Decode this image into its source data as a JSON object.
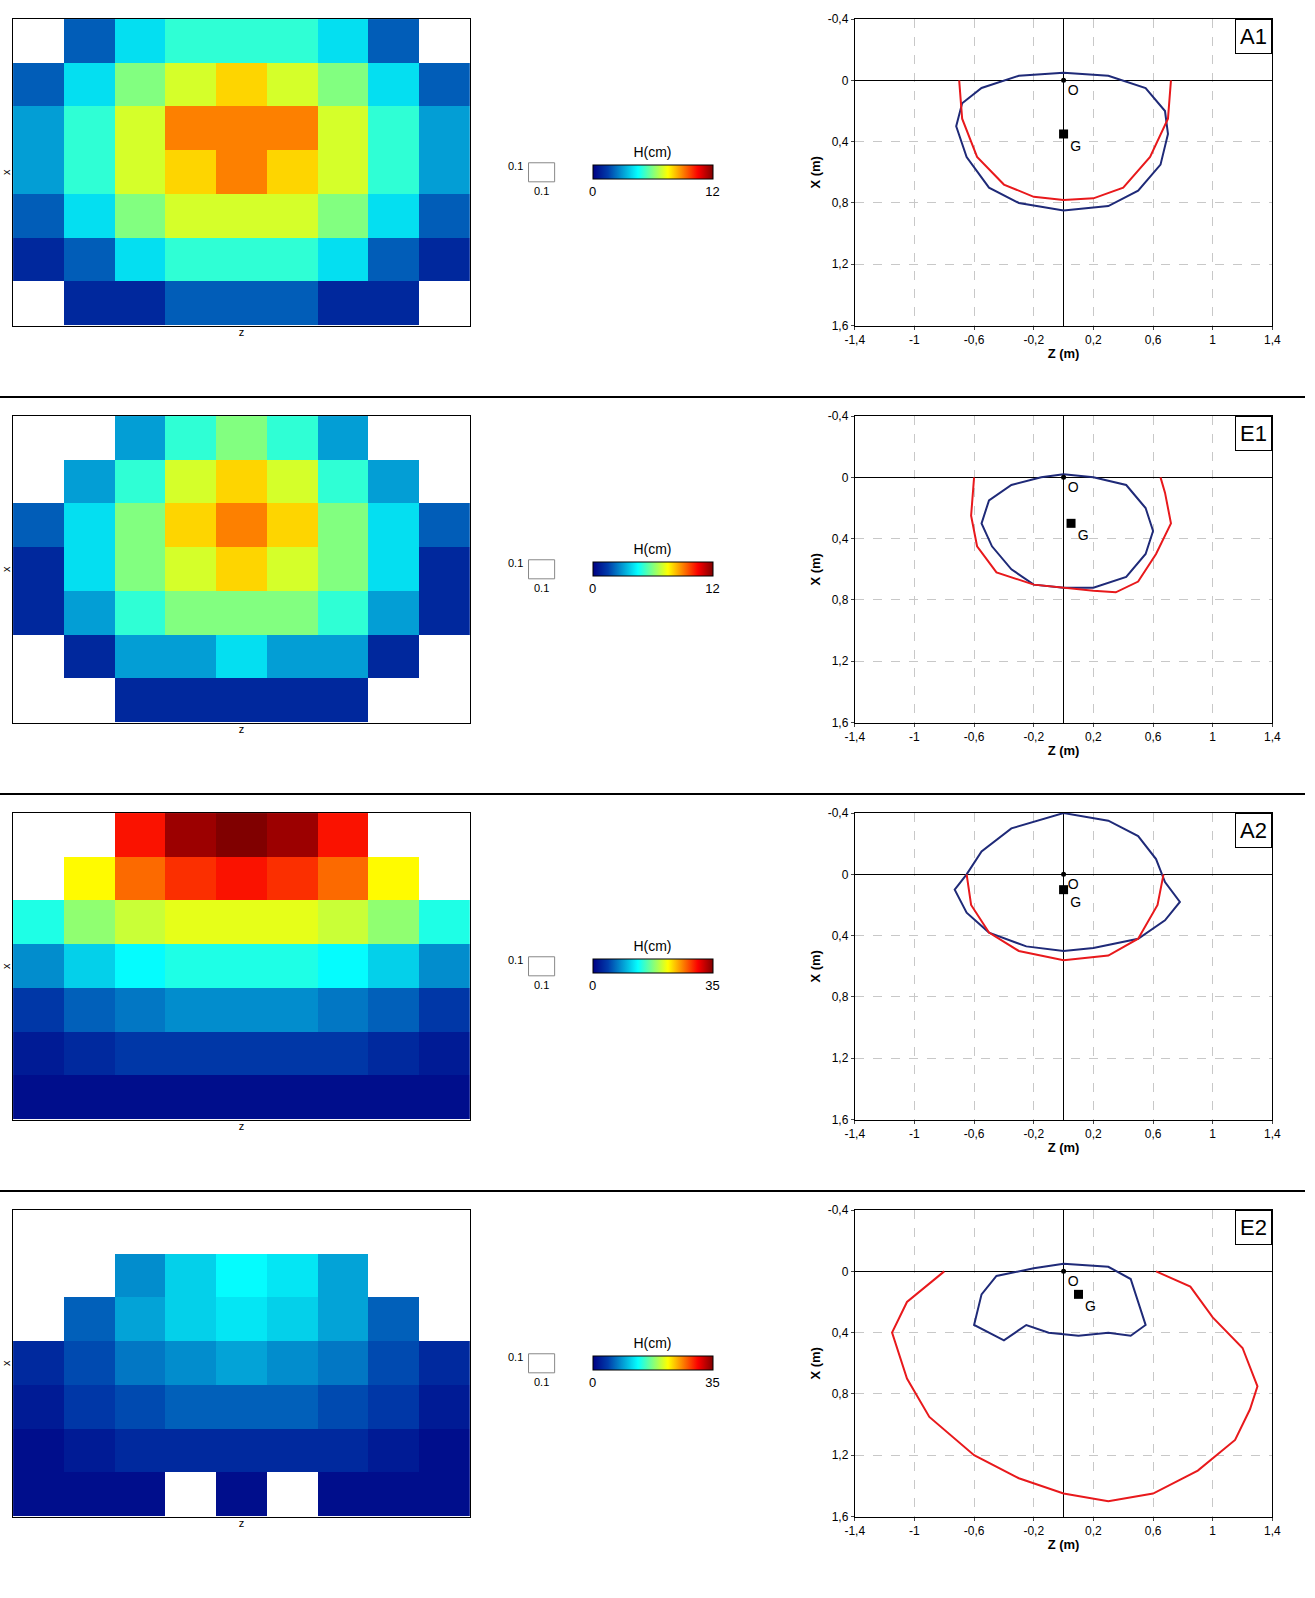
{
  "chart_data": [
    {
      "type": "heatmap",
      "xlabel": "z",
      "ylabel": "x",
      "tick_labels": false,
      "scale": 0.1,
      "colorbar_title": "H(cm)",
      "colorbar_range": [
        0,
        12
      ],
      "colorbar_ticks": [
        0,
        12
      ],
      "cells": [
        [
          null,
          2,
          4,
          5,
          5,
          5,
          4,
          2,
          null
        ],
        [
          2,
          4,
          6,
          7,
          8,
          7,
          6,
          4,
          2
        ],
        [
          3,
          5,
          7,
          9,
          9,
          9,
          7,
          5,
          3
        ],
        [
          3,
          5,
          7,
          8,
          9,
          8,
          7,
          5,
          3
        ],
        [
          2,
          4,
          6,
          7,
          7,
          7,
          6,
          4,
          2
        ],
        [
          1,
          2,
          4,
          5,
          5,
          5,
          4,
          2,
          1
        ],
        [
          null,
          1,
          1,
          2,
          2,
          2,
          1,
          1,
          null
        ]
      ]
    },
    {
      "type": "line",
      "title": "A1",
      "xlabel": "Z (m)",
      "ylabel": "X (m)",
      "grid": true,
      "xlim": [
        -1.4,
        1.4
      ],
      "xticks": [
        {
          "value": -1.4,
          "label": "-1,4"
        },
        -1,
        {
          "value": -0.6,
          "label": "-0,6"
        },
        {
          "value": -0.2,
          "label": "-0,2"
        },
        {
          "value": 0.2,
          "label": "0,2"
        },
        {
          "value": 0.6,
          "label": "0,6"
        },
        1,
        {
          "value": 1.4,
          "label": "1,4"
        }
      ],
      "ylim": [
        1.6,
        -0.4
      ],
      "yticks": [
        {
          "value": -0.4,
          "label": "-0,4"
        },
        0,
        {
          "value": 0.4,
          "label": "0,4"
        },
        {
          "value": 0.8,
          "label": "0,8"
        },
        {
          "value": 1.2,
          "label": "1,2"
        },
        {
          "value": 1.6,
          "label": "1,6"
        }
      ],
      "series": [
        {
          "color": "#1f2a78",
          "x": [
            0,
            0.3,
            0.55,
            0.68,
            0.7,
            0.65,
            0.5,
            0.3,
            0,
            -0.3,
            -0.5,
            -0.65,
            -0.72,
            -0.68,
            -0.55,
            -0.3,
            0
          ],
          "values": [
            -0.05,
            -0.03,
            0.05,
            0.2,
            0.35,
            0.55,
            0.72,
            0.82,
            0.85,
            0.8,
            0.7,
            0.5,
            0.3,
            0.15,
            0.05,
            -0.03,
            -0.05
          ]
        },
        {
          "color": "#e8191c",
          "x": [
            -0.7,
            -0.68,
            -0.58,
            -0.4,
            -0.2,
            0,
            0.2,
            0.4,
            0.58,
            0.7,
            0.72
          ],
          "values": [
            0,
            0.25,
            0.5,
            0.68,
            0.76,
            0.78,
            0.77,
            0.7,
            0.5,
            0.25,
            0
          ]
        }
      ],
      "annotations": [
        {
          "text": "O",
          "x": 0,
          "y": 0,
          "marker": "circle"
        },
        {
          "text": "G",
          "x": 0,
          "y": 0.35,
          "marker": "square"
        }
      ]
    },
    {
      "type": "heatmap",
      "xlabel": "z",
      "ylabel": "x",
      "tick_labels": false,
      "scale": 0.1,
      "colorbar_title": "H(cm)",
      "colorbar_range": [
        0,
        12
      ],
      "colorbar_ticks": [
        0,
        12
      ],
      "cells": [
        [
          null,
          null,
          3,
          5,
          6,
          5,
          3,
          null,
          null
        ],
        [
          null,
          3,
          5,
          7,
          8,
          7,
          5,
          3,
          null
        ],
        [
          2,
          4,
          6,
          8,
          9,
          8,
          6,
          4,
          2
        ],
        [
          1,
          4,
          6,
          7,
          8,
          7,
          6,
          4,
          1
        ],
        [
          1,
          3,
          5,
          6,
          6,
          6,
          5,
          3,
          1
        ],
        [
          null,
          1,
          3,
          3,
          4,
          3,
          3,
          1,
          null
        ],
        [
          null,
          null,
          1,
          1,
          1,
          1,
          1,
          null,
          null
        ]
      ]
    },
    {
      "type": "line",
      "title": "E1",
      "xlabel": "Z (m)",
      "ylabel": "X (m)",
      "grid": true,
      "xlim": [
        -1.4,
        1.4
      ],
      "xticks": [
        {
          "value": -1.4,
          "label": "-1,4"
        },
        -1,
        {
          "value": -0.6,
          "label": "-0,6"
        },
        {
          "value": -0.2,
          "label": "-0,2"
        },
        {
          "value": 0.2,
          "label": "0,2"
        },
        {
          "value": 0.6,
          "label": "0,6"
        },
        1,
        {
          "value": 1.4,
          "label": "1,4"
        }
      ],
      "ylim": [
        1.6,
        -0.4
      ],
      "yticks": [
        {
          "value": -0.4,
          "label": "-0,4"
        },
        0,
        {
          "value": 0.4,
          "label": "0,4"
        },
        {
          "value": 0.8,
          "label": "0,8"
        },
        {
          "value": 1.2,
          "label": "1,2"
        },
        {
          "value": 1.6,
          "label": "1,6"
        }
      ],
      "series": [
        {
          "color": "#1f2a78",
          "x": [
            0,
            0.2,
            0.42,
            0.55,
            0.6,
            0.55,
            0.42,
            0.2,
            0,
            -0.2,
            -0.35,
            -0.48,
            -0.55,
            -0.5,
            -0.35,
            -0.15,
            0
          ],
          "values": [
            -0.02,
            0,
            0.05,
            0.2,
            0.35,
            0.5,
            0.65,
            0.72,
            0.72,
            0.7,
            0.6,
            0.45,
            0.3,
            0.15,
            0.05,
            0,
            -0.02
          ]
        },
        {
          "color": "#e8191c",
          "x": [
            -0.6,
            -0.62,
            -0.58,
            -0.45,
            -0.2,
            0,
            0.2,
            0.35,
            0.5,
            0.62,
            0.72,
            0.68,
            0.65
          ],
          "values": [
            0,
            0.25,
            0.45,
            0.62,
            0.7,
            0.72,
            0.74,
            0.75,
            0.68,
            0.5,
            0.3,
            0.1,
            0
          ]
        }
      ],
      "annotations": [
        {
          "text": "O",
          "x": 0,
          "y": 0,
          "marker": "circle"
        },
        {
          "text": "G",
          "x": 0.05,
          "y": 0.3,
          "marker": "square"
        }
      ]
    },
    {
      "type": "heatmap",
      "xlabel": "z",
      "ylabel": "x",
      "tick_labels": false,
      "scale": 0.1,
      "colorbar_title": "H(cm)",
      "colorbar_range": [
        0,
        35
      ],
      "colorbar_ticks": [
        0,
        35
      ],
      "cells": [
        [
          null,
          null,
          30,
          34,
          35,
          34,
          30,
          null,
          null
        ],
        [
          null,
          22,
          27,
          29,
          30,
          29,
          27,
          22,
          null
        ],
        [
          14,
          18,
          20,
          21,
          21,
          21,
          20,
          18,
          14
        ],
        [
          8,
          11,
          13,
          14,
          14,
          14,
          13,
          11,
          8
        ],
        [
          4,
          6,
          7,
          8,
          8,
          8,
          7,
          6,
          4
        ],
        [
          2,
          3,
          4,
          4,
          4,
          4,
          4,
          3,
          2
        ],
        [
          1,
          1,
          1,
          1,
          1,
          1,
          1,
          1,
          1
        ]
      ]
    },
    {
      "type": "line",
      "title": "A2",
      "xlabel": "Z (m)",
      "ylabel": "X (m)",
      "grid": true,
      "xlim": [
        -1.4,
        1.4
      ],
      "xticks": [
        {
          "value": -1.4,
          "label": "-1,4"
        },
        -1,
        {
          "value": -0.6,
          "label": "-0,6"
        },
        {
          "value": -0.2,
          "label": "-0,2"
        },
        {
          "value": 0.2,
          "label": "0,2"
        },
        {
          "value": 0.6,
          "label": "0,6"
        },
        1,
        {
          "value": 1.4,
          "label": "1,4"
        }
      ],
      "ylim": [
        1.6,
        -0.4
      ],
      "yticks": [
        {
          "value": -0.4,
          "label": "-0,4"
        },
        0,
        {
          "value": 0.4,
          "label": "0,4"
        },
        {
          "value": 0.8,
          "label": "0,8"
        },
        {
          "value": 1.2,
          "label": "1,2"
        },
        {
          "value": 1.6,
          "label": "1,6"
        }
      ],
      "series": [
        {
          "color": "#1f2a78",
          "x": [
            0,
            0.3,
            0.5,
            0.62,
            0.68,
            0.78,
            0.68,
            0.5,
            0.2,
            0,
            -0.25,
            -0.5,
            -0.65,
            -0.73,
            -0.65,
            -0.55,
            -0.35,
            0
          ],
          "values": [
            -0.4,
            -0.35,
            -0.25,
            -0.1,
            0.05,
            0.18,
            0.3,
            0.42,
            0.48,
            0.5,
            0.47,
            0.38,
            0.25,
            0.1,
            0,
            -0.15,
            -0.3,
            -0.4
          ]
        },
        {
          "color": "#e8191c",
          "x": [
            -0.65,
            -0.62,
            -0.5,
            -0.3,
            0,
            0.3,
            0.5,
            0.63,
            0.67
          ],
          "values": [
            0,
            0.2,
            0.38,
            0.5,
            0.56,
            0.53,
            0.42,
            0.2,
            0
          ]
        }
      ],
      "annotations": [
        {
          "text": "O",
          "x": 0,
          "y": 0,
          "marker": "circle"
        },
        {
          "text": "G",
          "x": 0,
          "y": 0.1,
          "marker": "square"
        }
      ]
    },
    {
      "type": "heatmap",
      "xlabel": "z",
      "ylabel": "x",
      "tick_labels": false,
      "scale": 0.1,
      "colorbar_title": "H(cm)",
      "colorbar_range": [
        0,
        35
      ],
      "colorbar_ticks": [
        0,
        35
      ],
      "cells": [
        [
          null,
          null,
          null,
          null,
          null,
          null,
          null,
          null,
          null
        ],
        [
          null,
          null,
          8,
          11,
          13,
          12,
          9,
          null,
          null
        ],
        [
          null,
          6,
          9,
          11,
          12,
          11,
          9,
          6,
          null
        ],
        [
          3,
          5,
          7,
          8,
          9,
          8,
          7,
          5,
          3
        ],
        [
          2,
          4,
          5,
          6,
          6,
          6,
          5,
          4,
          2
        ],
        [
          1,
          2,
          3,
          3,
          3,
          3,
          3,
          2,
          1
        ],
        [
          1,
          1,
          1,
          null,
          1,
          null,
          1,
          1,
          1
        ]
      ]
    },
    {
      "type": "line",
      "title": "E2",
      "xlabel": "Z (m)",
      "ylabel": "X (m)",
      "grid": true,
      "xlim": [
        -1.4,
        1.4
      ],
      "xticks": [
        {
          "value": -1.4,
          "label": "-1,4"
        },
        -1,
        {
          "value": -0.6,
          "label": "-0,6"
        },
        {
          "value": -0.2,
          "label": "-0,2"
        },
        {
          "value": 0.2,
          "label": "0,2"
        },
        {
          "value": 0.6,
          "label": "0,6"
        },
        1,
        {
          "value": 1.4,
          "label": "1,4"
        }
      ],
      "ylim": [
        1.6,
        -0.4
      ],
      "yticks": [
        {
          "value": -0.4,
          "label": "-0,4"
        },
        0,
        {
          "value": 0.4,
          "label": "0,4"
        },
        {
          "value": 0.8,
          "label": "0,8"
        },
        {
          "value": 1.2,
          "label": "1,2"
        },
        {
          "value": 1.6,
          "label": "1,6"
        }
      ],
      "series": [
        {
          "color": "#1f2a78",
          "x": [
            0,
            0.3,
            0.45,
            0.5,
            0.55,
            0.45,
            0.3,
            0.1,
            -0.1,
            -0.25,
            -0.4,
            -0.6,
            -0.55,
            -0.45,
            -0.2,
            0
          ],
          "values": [
            -0.05,
            -0.03,
            0.05,
            0.2,
            0.35,
            0.42,
            0.4,
            0.42,
            0.4,
            0.35,
            0.45,
            0.35,
            0.15,
            0.03,
            -0.02,
            -0.05
          ]
        },
        {
          "color": "#e8191c",
          "x": [
            -0.8,
            -1.05,
            -1.15,
            -1.05,
            -0.9,
            -0.6,
            -0.3,
            0,
            0.3,
            0.6,
            0.9,
            1.15,
            1.25,
            1.3,
            1.2,
            1.0,
            0.85,
            0.62
          ],
          "values": [
            0,
            0.2,
            0.4,
            0.7,
            0.95,
            1.2,
            1.35,
            1.45,
            1.5,
            1.45,
            1.3,
            1.1,
            0.9,
            0.75,
            0.5,
            0.3,
            0.1,
            0
          ]
        }
      ],
      "annotations": [
        {
          "text": "O",
          "x": 0,
          "y": 0,
          "marker": "circle"
        },
        {
          "text": "G",
          "x": 0.1,
          "y": 0.15,
          "marker": "square"
        }
      ]
    }
  ]
}
